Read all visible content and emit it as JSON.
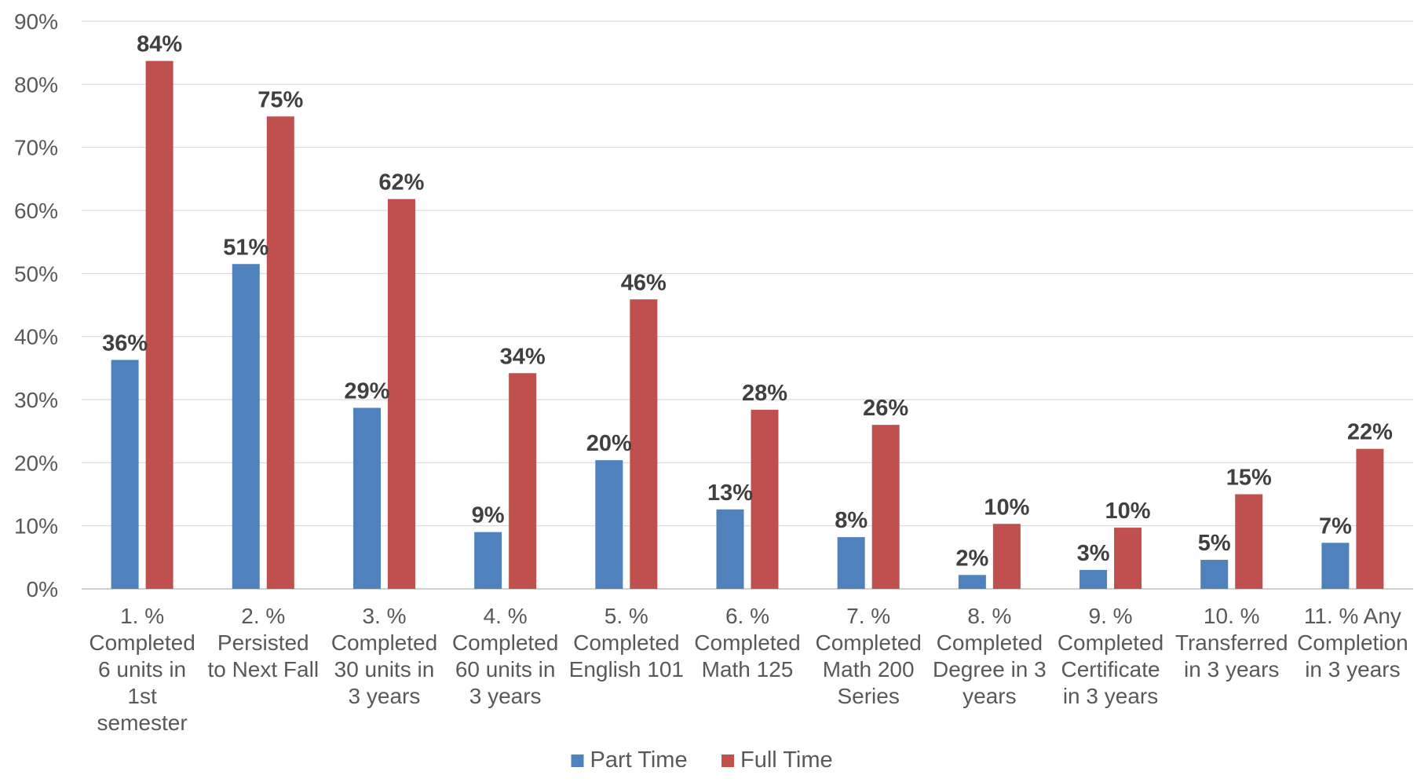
{
  "chart_data": {
    "type": "bar",
    "title": "",
    "xlabel": "",
    "ylabel": "",
    "ylim": [
      0,
      90
    ],
    "y_ticks": [
      "0%",
      "10%",
      "20%",
      "30%",
      "40%",
      "50%",
      "60%",
      "70%",
      "80%",
      "90%"
    ],
    "grid": true,
    "legend_position": "bottom",
    "categories": [
      "1. % Completed 6 units in 1st semester",
      "2. % Persisted to Next Fall",
      "3. % Completed 30 units in 3 years",
      "4. % Completed 60 units in 3 years",
      "5. % Completed English 101",
      "6. % Completed Math 125",
      "7. % Completed Math 200 Series",
      "8. % Completed Degree in 3 years",
      "9. % Completed Certificate in 3 years",
      "10. % Transferred in 3 years",
      "11. % Any Completion in 3 years"
    ],
    "category_lines": [
      [
        "1. %",
        "Completed",
        "6 units in",
        "1st",
        "semester"
      ],
      [
        "2. %",
        "Persisted",
        "to Next Fall"
      ],
      [
        "3. %",
        "Completed",
        "30 units in",
        "3 years"
      ],
      [
        "4. %",
        "Completed",
        "60 units in",
        "3 years"
      ],
      [
        "5. %",
        "Completed",
        "English 101"
      ],
      [
        "6. %",
        "Completed",
        "Math 125"
      ],
      [
        "7. %",
        "Completed",
        "Math 200",
        "Series"
      ],
      [
        "8. %",
        "Completed",
        "Degree in 3",
        "years"
      ],
      [
        "9. %",
        "Completed",
        "Certificate",
        "in 3 years"
      ],
      [
        "10. %",
        "Transferred",
        "in 3 years"
      ],
      [
        "11. % Any",
        "Completion",
        "in 3 years"
      ]
    ],
    "series": [
      {
        "name": "Part Time",
        "color": "#4f81bd",
        "values": [
          36.3,
          51.5,
          28.7,
          9.0,
          20.4,
          12.6,
          8.2,
          2.2,
          3.0,
          4.6,
          7.3
        ],
        "labels": [
          "36%",
          "51%",
          "29%",
          "9%",
          "20%",
          "13%",
          "8%",
          "2%",
          "3%",
          "5%",
          "7%"
        ]
      },
      {
        "name": "Full Time",
        "color": "#c0504d",
        "values": [
          83.7,
          74.9,
          61.8,
          34.2,
          45.9,
          28.4,
          26.0,
          10.3,
          9.7,
          15.0,
          22.2
        ],
        "labels": [
          "84%",
          "75%",
          "62%",
          "34%",
          "46%",
          "28%",
          "26%",
          "10%",
          "10%",
          "15%",
          "22%"
        ]
      }
    ],
    "gridline_color": "#d9d9d9",
    "axis_color": "#bfbfbf"
  }
}
